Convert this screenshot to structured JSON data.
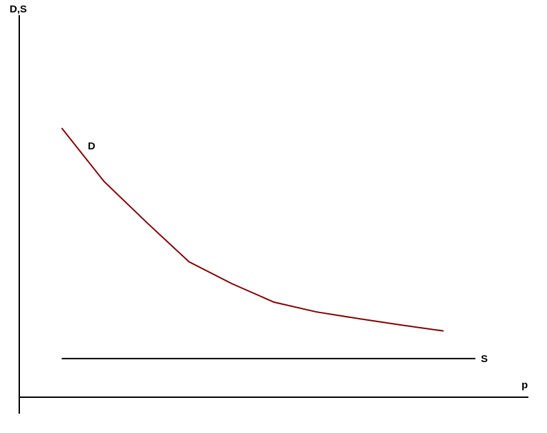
{
  "chart_data": {
    "type": "line",
    "xlabel": "p",
    "ylabel": "D,S",
    "xlim": [
      0,
      12
    ],
    "ylim": [
      0,
      9
    ],
    "series": [
      {
        "name": "D",
        "color": "#800000",
        "x": [
          1,
          2,
          3,
          4,
          5,
          6,
          7,
          8,
          9,
          10
        ],
        "values": [
          6.34,
          5.08,
          4.12,
          3.19,
          2.68,
          2.24,
          2.01,
          1.85,
          1.7,
          1.56
        ]
      },
      {
        "name": "S",
        "color": "#000000",
        "x": [
          1,
          10.75
        ],
        "values": [
          0.91,
          0.91
        ]
      }
    ]
  }
}
